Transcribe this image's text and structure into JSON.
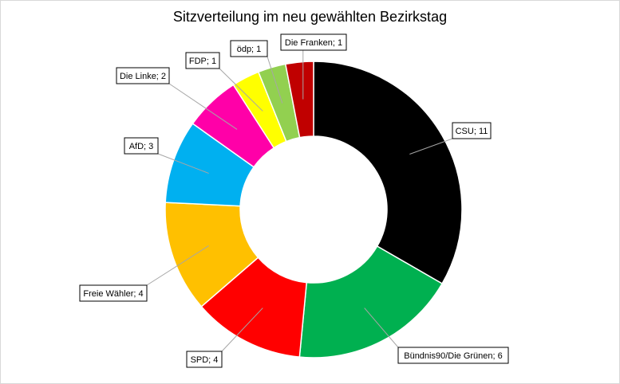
{
  "chart_data": {
    "type": "pie",
    "title": "Sitzverteilung im neu gewählten Bezirkstag",
    "donut": true,
    "start": "top",
    "direction": "clockwise",
    "slices": [
      {
        "label": "CSU; 11",
        "name": "CSU",
        "value": 11,
        "color": "#000000"
      },
      {
        "label": "Bündnis90/Die Grünen; 6",
        "name": "Bündnis90/Die Grünen",
        "value": 6,
        "color": "#00b050"
      },
      {
        "label": "SPD; 4",
        "name": "SPD",
        "value": 4,
        "color": "#ff0000"
      },
      {
        "label": "Freie Wähler; 4",
        "name": "Freie Wähler",
        "value": 4,
        "color": "#ffc000"
      },
      {
        "label": "AfD; 3",
        "name": "AfD",
        "value": 3,
        "color": "#00b0f0"
      },
      {
        "label": "Die Linke; 2",
        "name": "Die Linke",
        "value": 2,
        "color": "#ff00a8"
      },
      {
        "label": "FDP; 1",
        "name": "FDP",
        "value": 1,
        "color": "#ffff00"
      },
      {
        "label": "ödp; 1",
        "name": "ödp",
        "value": 1,
        "color": "#92d050"
      },
      {
        "label": "Die Franken; 1",
        "name": "Die Franken",
        "value": 1,
        "color": "#c00000"
      }
    ]
  }
}
